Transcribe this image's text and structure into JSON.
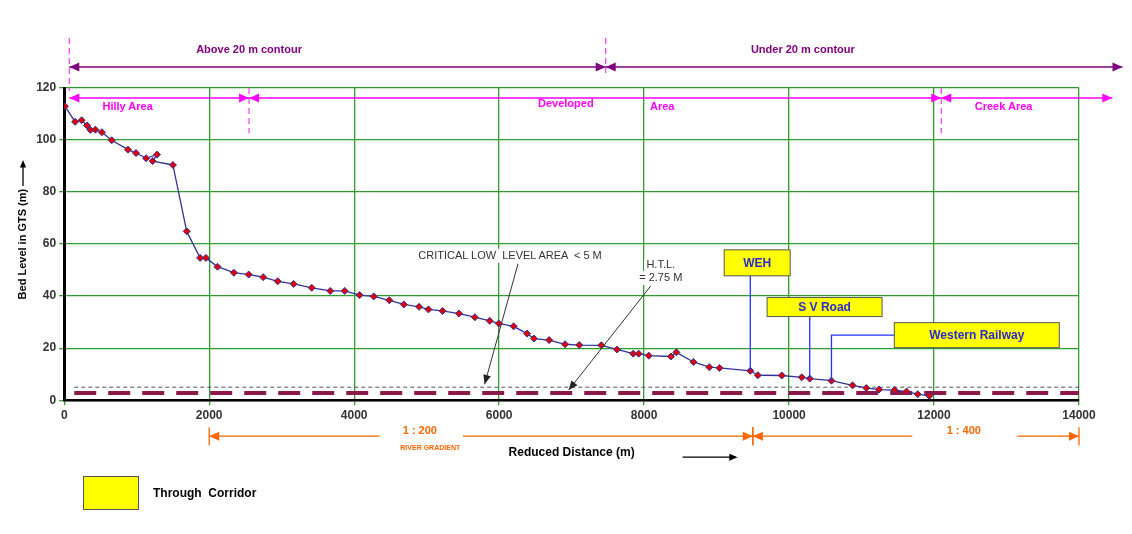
{
  "chart_data": {
    "type": "line",
    "xlabel": "Reduced Distance (m)",
    "ylabel": "Bed Level in GTS (m)",
    "x": [
      10,
      150,
      240,
      315,
      360,
      430,
      520,
      655,
      880,
      990,
      1130,
      1280,
      1220,
      1500,
      1690,
      1875,
      1955,
      2115,
      2340,
      2545,
      2745,
      2945,
      3165,
      3415,
      3670,
      3870,
      4075,
      4270,
      4485,
      4685,
      4895,
      5025,
      5220,
      5445,
      5665,
      5870,
      5995,
      6200,
      6385,
      6480,
      6690,
      6910,
      7105,
      7410,
      7625,
      7850,
      7925,
      8065,
      8370,
      8445,
      8680,
      8900,
      9040,
      9465,
      9570,
      9900,
      10175,
      10285,
      10585,
      10875,
      11065,
      11240,
      11455,
      11620,
      11775,
      11935
    ],
    "series": [
      {
        "color": "#333399",
        "values": [
          113,
          107,
          107.6,
          105.6,
          103.9,
          104,
          103,
          99.9,
          96.3,
          95,
          93,
          94.4,
          91.9,
          90.4,
          64.9,
          54.7,
          54.7,
          51.3,
          49,
          48.3,
          47.3,
          45.7,
          44.7,
          43.2,
          42,
          42,
          40.4,
          39.9,
          38.4,
          36.8,
          35.9,
          34.9,
          34.3,
          33.3,
          31.9,
          30.5,
          29.5,
          28.4,
          25.6,
          23.7,
          23.1,
          21.5,
          21.2,
          21.1,
          19.5,
          17.9,
          17.9,
          17.1,
          16.8,
          18.4,
          14.7,
          12.7,
          12.4,
          11.3,
          9.6,
          9.5,
          8.8,
          8.3,
          7.5,
          5.7,
          4.7,
          4.1,
          3.9,
          3.3,
          2.3,
          1.7
        ]
      }
    ],
    "xlim": [
      0,
      14000
    ],
    "xticks": [
      0,
      2000,
      4000,
      6000,
      8000,
      10000,
      12000,
      14000
    ],
    "ylim": [
      0,
      120
    ],
    "yticks": [
      0,
      20,
      40,
      60,
      80,
      100,
      120
    ],
    "grid": true,
    "marker": "diamond",
    "legend": false,
    "ref_lines": [
      {
        "axis": "y",
        "value": 5,
        "label": "CRITICAL LOW  LEVEL AREA  < 5 M",
        "color": "#555555",
        "line_style": "dotted"
      },
      {
        "axis": "y",
        "value": 2.75,
        "label": "H.T.L.\n= 2.75 M",
        "color": "#8b1a4a",
        "line_style": "dashed"
      }
    ],
    "annotations": [
      "Above 20 m contour",
      "Under 20 m contour",
      "Hilly Area",
      "Developed",
      "Area",
      "Creek Area",
      "1 : 200",
      "RIVER GRADIENT",
      "1 : 400",
      "Through  Corridor",
      {
        "text": "WEH",
        "x": 9465,
        "y": 11.3
      },
      {
        "text": "S V Road",
        "x": 10285,
        "y": 8.3
      },
      "Western Railway"
    ]
  }
}
